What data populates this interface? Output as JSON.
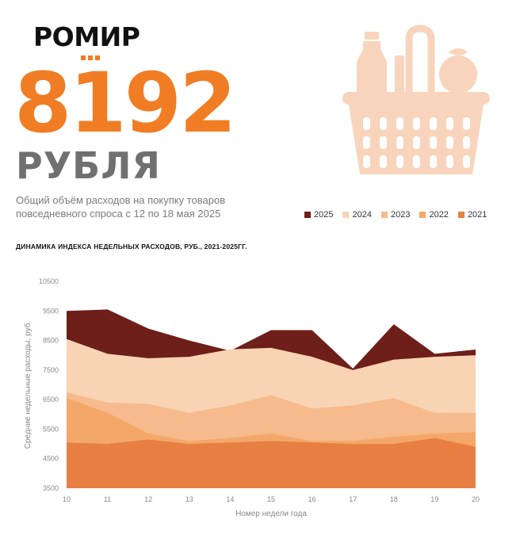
{
  "brand": {
    "name": "РОМИР"
  },
  "headline": {
    "value": "8192",
    "currency": "РУБЛЯ",
    "description": "Общий объём расходов на покупку товаров повседневного спроса с 12 по 18 мая 2025"
  },
  "colors": {
    "accent_orange": "#f07d24",
    "currency_gray": "#707070",
    "s2025": "#6e1f1a",
    "s2024": "#f8d4b4",
    "s2023": "#f6ba8c",
    "s2022": "#f3a86a",
    "s2021": "#e87f42",
    "basket": "#f8d4bc"
  },
  "icons": {
    "basket": "grocery-basket-icon"
  },
  "chart_data": {
    "type": "area",
    "title": "ДИНАМИКА ИНДЕКСА НЕДЕЛЬНЫХ РАСХОДОВ, РУБ., 2021-2025ГГ.",
    "xlabel": "Номер недели года",
    "ylabel": "Средние недельные расходы, руб.",
    "x": [
      10,
      11,
      12,
      13,
      14,
      15,
      16,
      17,
      18,
      19,
      20
    ],
    "x_ticks": [
      "10",
      "11",
      "12",
      "13",
      "14",
      "15",
      "16",
      "17",
      "18",
      "19",
      "20"
    ],
    "y_ticks": [
      "3500",
      "4500",
      "5500",
      "6500",
      "7500",
      "8500",
      "9500",
      "10500"
    ],
    "ylim": [
      3500,
      10500
    ],
    "legend_position": "top-right",
    "series": [
      {
        "name": "2025",
        "values": [
          9500,
          9550,
          8900,
          8500,
          8150,
          8850,
          8850,
          7550,
          9050,
          8050,
          8192
        ]
      },
      {
        "name": "2024",
        "values": [
          8550,
          8050,
          7900,
          7950,
          8200,
          8250,
          7950,
          7500,
          7850,
          7950,
          8000
        ]
      },
      {
        "name": "2023",
        "values": [
          6750,
          6400,
          6350,
          6050,
          6300,
          6650,
          6200,
          6300,
          6550,
          6050,
          6050
        ]
      },
      {
        "name": "2022",
        "values": [
          6550,
          6050,
          5350,
          5100,
          5200,
          5350,
          5100,
          5100,
          5250,
          5350,
          5400
        ]
      },
      {
        "name": "2021",
        "values": [
          5050,
          5000,
          5150,
          5000,
          5050,
          5100,
          5050,
          5000,
          5000,
          5200,
          4900
        ]
      }
    ]
  }
}
